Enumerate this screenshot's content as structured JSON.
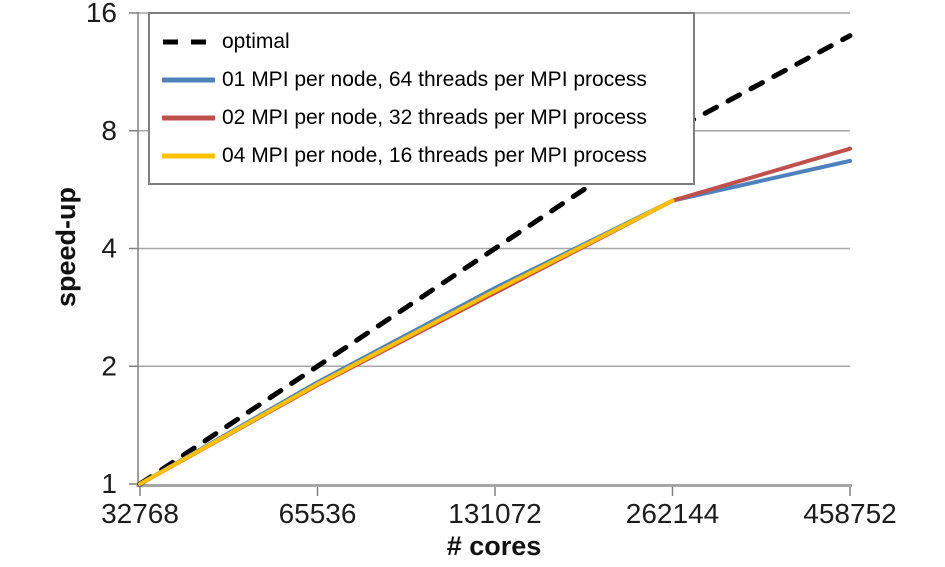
{
  "chart_data": {
    "type": "line",
    "title": "",
    "xlabel": "# cores",
    "ylabel": "speed-up",
    "x_scale": "log2-categorical",
    "y_scale": "log2",
    "categories": [
      "32768",
      "65536",
      "131072",
      "262144",
      "458752"
    ],
    "y_ticks": [
      1,
      2,
      4,
      8,
      16
    ],
    "ylim": [
      1,
      16
    ],
    "grid": "horizontal",
    "legend_position": "top-left-inside",
    "series": [
      {
        "name": "optimal",
        "color": "#000000",
        "style": "dashed",
        "values": [
          1,
          2,
          4,
          8,
          14
        ]
      },
      {
        "name": "01 MPI per node, 64 threads per MPI process",
        "color": "#4F81BD",
        "style": "solid",
        "values": [
          1,
          1.82,
          3.17,
          5.3,
          6.7
        ]
      },
      {
        "name": "02 MPI per node, 32 threads per MPI process",
        "color": "#C0504D",
        "style": "solid",
        "values": [
          1,
          1.79,
          3.08,
          5.3,
          7.2
        ]
      },
      {
        "name": "04 MPI per node, 16 threads per MPI process",
        "color": "#FFC000",
        "style": "solid",
        "values": [
          1,
          1.8,
          3.12,
          5.3
        ]
      }
    ],
    "colors": {
      "gridline": "#A6A6A6",
      "axis_line": "#A6A6A6",
      "tick_mark": "#808080",
      "tick_text": "#1c1c1c",
      "legend_border": "#7F7F7F",
      "background": "#FFFFFF"
    }
  }
}
